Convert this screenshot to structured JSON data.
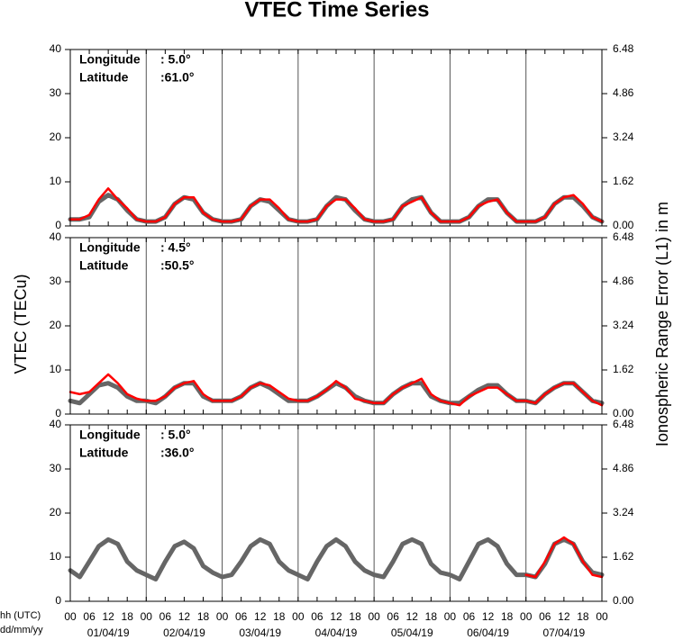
{
  "chart_data": [
    {
      "type": "line",
      "title": "VTEC Time Series",
      "longitude_label": "Longitude",
      "longitude": ":  5.0°",
      "latitude_label": "Latitude",
      "latitude": ":61.0°",
      "x": [
        0,
        3,
        6,
        9,
        12,
        15,
        18,
        21,
        24,
        27,
        30,
        33,
        36,
        39,
        42,
        45,
        48,
        51,
        54,
        57,
        60,
        63,
        66,
        69,
        72,
        75,
        78,
        81,
        84,
        87,
        90,
        93,
        96,
        99,
        102,
        105,
        108,
        111,
        114,
        117,
        120,
        123,
        126,
        129,
        132,
        135,
        138,
        141,
        144,
        147,
        150,
        153,
        156,
        159,
        162,
        165,
        168
      ],
      "ylim": [
        0,
        40
      ],
      "yticks": [
        0,
        10,
        20,
        30,
        40
      ],
      "y2lim": [
        0,
        6.48
      ],
      "y2ticks": [
        {
          "value": 0,
          "label": "0.00"
        },
        1.62,
        3.24,
        4.86,
        6.48
      ],
      "series": [
        {
          "color": "#666666",
          "values": [
            1.5,
            1.5,
            2,
            5.5,
            7,
            6,
            3.5,
            1.5,
            1,
            1,
            2,
            5,
            6.5,
            6,
            3,
            1.5,
            1,
            1,
            1.5,
            4.5,
            6,
            5.5,
            3.5,
            1.5,
            1,
            1,
            1.5,
            4.5,
            6.5,
            6,
            3.5,
            1.5,
            1,
            1,
            1.5,
            4.5,
            6,
            6.5,
            3,
            1,
            1,
            1,
            2,
            4.5,
            6,
            6,
            3,
            1,
            1,
            1,
            2,
            5,
            6.5,
            6.5,
            4.5,
            2,
            1
          ]
        },
        {
          "color": "#ff0000",
          "values": [
            1.5,
            1.5,
            2.5,
            6,
            8.5,
            6,
            4,
            1.5,
            1,
            1,
            2,
            5,
            6.5,
            6.5,
            3,
            1.5,
            1,
            1,
            1.5,
            4.5,
            6,
            6,
            4,
            1.5,
            1,
            1,
            1.5,
            4.5,
            6,
            6,
            4,
            1.5,
            1,
            1,
            1.5,
            4.5,
            5.5,
            6.5,
            3,
            1,
            1,
            1,
            2,
            4.5,
            5.5,
            6,
            3,
            1,
            1,
            1,
            2,
            5,
            6.5,
            7,
            5,
            2,
            1
          ]
        }
      ]
    },
    {
      "type": "line",
      "ylabel": "VTEC (TECu)",
      "y2label": "Ionospheric Range Error (L1) in m",
      "longitude_label": "Longitude",
      "longitude": ":  4.5°",
      "latitude_label": "Latitude",
      "latitude": ":50.5°",
      "x": [
        0,
        3,
        6,
        9,
        12,
        15,
        18,
        21,
        24,
        27,
        30,
        33,
        36,
        39,
        42,
        45,
        48,
        51,
        54,
        57,
        60,
        63,
        66,
        69,
        72,
        75,
        78,
        81,
        84,
        87,
        90,
        93,
        96,
        99,
        102,
        105,
        108,
        111,
        114,
        117,
        120,
        123,
        126,
        129,
        132,
        135,
        138,
        141,
        144,
        147,
        150,
        153,
        156,
        159,
        162,
        165,
        168
      ],
      "ylim": [
        0,
        40
      ],
      "yticks": [
        0,
        10,
        20,
        30,
        40
      ],
      "y2lim": [
        0,
        6.48
      ],
      "y2ticks": [
        {
          "value": 0,
          "label": "0.00"
        },
        1.62,
        3.24,
        4.86,
        6.48
      ],
      "series": [
        {
          "color": "#666666",
          "values": [
            3,
            2.5,
            4.5,
            6.5,
            7,
            6,
            4,
            3,
            3,
            2.5,
            4,
            6,
            7,
            7,
            4,
            3,
            3,
            3,
            4,
            6,
            7,
            6,
            4.5,
            3,
            3,
            3,
            4,
            5.5,
            7,
            6,
            4,
            3,
            2.5,
            2.5,
            4.5,
            6,
            7,
            7,
            4,
            3,
            2.5,
            2.5,
            4,
            5.5,
            6.5,
            6.5,
            4.5,
            3,
            3,
            2.5,
            4.5,
            6,
            7,
            7,
            5,
            3,
            2.5
          ]
        },
        {
          "color": "#ff0000",
          "values": [
            5,
            4.5,
            5,
            7,
            9,
            7,
            4.5,
            3.5,
            3,
            3,
            4,
            6,
            7,
            7.5,
            4.5,
            3,
            3,
            3,
            4,
            6,
            7,
            6.5,
            5,
            3.5,
            3,
            3,
            4,
            5.5,
            7.5,
            6,
            3.5,
            3,
            2.5,
            2.5,
            4.5,
            6,
            7,
            8,
            4.5,
            3,
            2.5,
            2,
            4,
            5,
            6,
            6,
            4.5,
            3,
            3,
            2.5,
            4.5,
            6,
            7,
            7,
            5,
            3,
            2
          ]
        }
      ]
    },
    {
      "type": "line",
      "xlabel": "hh (UTC)",
      "xlabel2": "dd/mm/yy",
      "longitude_label": "Longitude",
      "longitude": ":  5.0°",
      "latitude_label": "Latitude",
      "latitude": ":36.0°",
      "x": [
        0,
        3,
        6,
        9,
        12,
        15,
        18,
        21,
        24,
        27,
        30,
        33,
        36,
        39,
        42,
        45,
        48,
        51,
        54,
        57,
        60,
        63,
        66,
        69,
        72,
        75,
        78,
        81,
        84,
        87,
        90,
        93,
        96,
        99,
        102,
        105,
        108,
        111,
        114,
        117,
        120,
        123,
        126,
        129,
        132,
        135,
        138,
        141,
        144,
        147,
        150,
        153,
        156,
        159,
        162,
        165,
        168
      ],
      "xlim": [
        0,
        168
      ],
      "xticks": [
        {
          "value": 0,
          "label": "00"
        },
        {
          "value": 6,
          "label": "06"
        },
        12,
        18,
        {
          "value": 24,
          "label": "00"
        },
        {
          "value": 30,
          "label": "06"
        },
        {
          "value": 36,
          "label": "12"
        },
        {
          "value": 42,
          "label": "18"
        },
        {
          "value": 48,
          "label": "00"
        },
        {
          "value": 54,
          "label": "06"
        },
        {
          "value": 60,
          "label": "12"
        },
        {
          "value": 66,
          "label": "18"
        },
        {
          "value": 72,
          "label": "00"
        },
        {
          "value": 78,
          "label": "06"
        },
        {
          "value": 84,
          "label": "12"
        },
        {
          "value": 90,
          "label": "18"
        },
        {
          "value": 96,
          "label": "00"
        },
        {
          "value": 102,
          "label": "06"
        },
        {
          "value": 108,
          "label": "12"
        },
        {
          "value": 114,
          "label": "18"
        },
        {
          "value": 120,
          "label": "00"
        },
        {
          "value": 126,
          "label": "06"
        },
        {
          "value": 132,
          "label": "12"
        },
        {
          "value": 138,
          "label": "18"
        },
        {
          "value": 144,
          "label": "00"
        },
        {
          "value": 150,
          "label": "06"
        },
        {
          "value": 156,
          "label": "12"
        },
        {
          "value": 162,
          "label": "18"
        },
        {
          "value": 168,
          "label": "00"
        }
      ],
      "date_labels": [
        "01/04/19",
        "02/04/19",
        "03/04/19",
        "04/04/19",
        "05/04/19",
        "06/04/19",
        "07/04/19"
      ],
      "ylim": [
        0,
        40
      ],
      "yticks": [
        0,
        10,
        20,
        30,
        40
      ],
      "y2lim": [
        0,
        6.48
      ],
      "y2ticks": [
        {
          "value": 0,
          "label": "0.00"
        },
        1.62,
        3.24,
        4.86,
        6.48
      ],
      "series": [
        {
          "color": "#666666",
          "values": [
            7,
            5.5,
            9,
            12.5,
            14,
            13,
            9,
            7,
            6,
            5,
            9,
            12.5,
            13.5,
            12,
            8,
            6.5,
            5.5,
            6,
            9,
            12.5,
            14,
            13,
            9,
            7,
            6,
            5,
            9,
            12.5,
            14,
            12.5,
            9,
            7,
            6,
            5.5,
            9,
            13,
            14,
            13,
            8.5,
            6.5,
            6,
            5,
            9,
            13,
            14,
            12.5,
            8.5,
            6,
            6,
            5.5,
            8.5,
            13,
            14,
            13,
            9,
            6.5,
            6
          ]
        },
        {
          "color": "#ff0000",
          "values": [
            null,
            null,
            null,
            null,
            null,
            null,
            null,
            null,
            null,
            null,
            null,
            null,
            null,
            null,
            null,
            null,
            null,
            null,
            null,
            null,
            null,
            null,
            null,
            null,
            null,
            null,
            null,
            null,
            null,
            null,
            null,
            null,
            null,
            null,
            null,
            null,
            null,
            null,
            null,
            null,
            null,
            null,
            null,
            null,
            null,
            null,
            null,
            null,
            6,
            5.5,
            9,
            13,
            14.5,
            13,
            9,
            6,
            5.5
          ]
        }
      ]
    }
  ]
}
